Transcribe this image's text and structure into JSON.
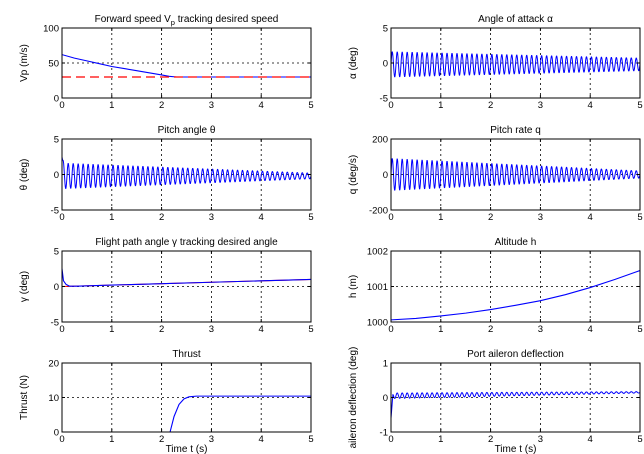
{
  "colors": {
    "blue": "#0000ff",
    "red": "#ff0000",
    "axis": "#000000",
    "grid": "#000000"
  },
  "chart_data": [
    {
      "type": "line",
      "title": "Forward speed V",
      "title_sub": "p",
      "title_rest": " tracking desired speed",
      "ylabel": "Vp (m/s)",
      "xlabel": "",
      "xlim": [
        0,
        5
      ],
      "ylim": [
        0,
        100
      ],
      "xticks": [
        "0",
        "1",
        "2",
        "3",
        "4",
        "5"
      ],
      "yticks": [
        "0",
        "50",
        "100"
      ],
      "grid": true,
      "series": [
        {
          "color": "#0000ff",
          "style": "solid",
          "x": [
            0,
            0.25,
            0.5,
            0.75,
            1.0,
            1.25,
            1.5,
            1.75,
            2.0,
            2.15,
            2.3,
            2.5,
            3.0,
            4.0,
            5.0
          ],
          "y": [
            62,
            57,
            53,
            49,
            45,
            42,
            39,
            36,
            33,
            31,
            30,
            30,
            30,
            30,
            30
          ]
        },
        {
          "color": "#ff0000",
          "style": "dashed",
          "x": [
            0,
            5
          ],
          "y": [
            30,
            30
          ]
        }
      ]
    },
    {
      "type": "line",
      "title": "Angle of attack α",
      "ylabel": "α (deg)",
      "xlabel": "",
      "xlim": [
        0,
        5
      ],
      "ylim": [
        -5,
        5
      ],
      "xticks": [
        "0",
        "1",
        "2",
        "3",
        "4",
        "5"
      ],
      "yticks": [
        "-5",
        "0",
        "5"
      ],
      "grid": true,
      "osc": {
        "color": "#0000ff",
        "offset": -0.2,
        "amp_start": 1.8,
        "amp_end": 0.9,
        "cycles": 50
      }
    },
    {
      "type": "line",
      "title": "Pitch angle θ",
      "ylabel": "θ (deg)",
      "xlabel": "",
      "xlim": [
        0,
        5
      ],
      "ylim": [
        -5,
        5
      ],
      "xticks": [
        "0",
        "1",
        "2",
        "3",
        "4",
        "5"
      ],
      "yticks": [
        "-5",
        "0",
        "5"
      ],
      "grid": true,
      "osc": {
        "color": "#0000ff",
        "offset": -0.2,
        "amp_start": 1.8,
        "amp_end": 0.4,
        "cycles": 50,
        "spike": 2.5
      }
    },
    {
      "type": "line",
      "title": "Pitch rate q",
      "ylabel": "q (deg/s)",
      "xlabel": "",
      "xlim": [
        0,
        5
      ],
      "ylim": [
        -200,
        200
      ],
      "xticks": [
        "0",
        "1",
        "2",
        "3",
        "4",
        "5"
      ],
      "yticks": [
        "-200",
        "0",
        "200"
      ],
      "grid": true,
      "osc": {
        "color": "#0000ff",
        "offset": 0,
        "amp_start": 90,
        "amp_end": 20,
        "cycles": 50
      }
    },
    {
      "type": "line",
      "title": "Flight path angle γ tracking desired angle",
      "ylabel": "γ (deg)",
      "xlabel": "",
      "xlim": [
        0,
        5
      ],
      "ylim": [
        -5,
        5
      ],
      "xticks": [
        "0",
        "1",
        "2",
        "3",
        "4",
        "5"
      ],
      "yticks": [
        "-5",
        "0",
        "5"
      ],
      "grid": true,
      "series": [
        {
          "color": "#ff0000",
          "style": "solid",
          "x": [
            0,
            5
          ],
          "y": [
            0,
            1.0
          ]
        },
        {
          "color": "#0000ff",
          "style": "solid",
          "x": [
            0,
            0.03,
            0.08,
            0.15,
            0.3,
            1,
            2,
            3,
            4,
            5
          ],
          "y": [
            2.5,
            0.8,
            0.3,
            0.05,
            0.05,
            0.2,
            0.4,
            0.6,
            0.8,
            1.0
          ]
        }
      ]
    },
    {
      "type": "line",
      "title": "Altitude h",
      "ylabel": "h (m)",
      "xlabel": "",
      "xlim": [
        0,
        5
      ],
      "ylim": [
        1000,
        1002
      ],
      "xticks": [
        "0",
        "1",
        "2",
        "3",
        "4",
        "5"
      ],
      "yticks": [
        "1000",
        "1001",
        "1002"
      ],
      "grid": true,
      "series": [
        {
          "color": "#0000ff",
          "style": "solid",
          "x": [
            0,
            0.5,
            1,
            1.5,
            2,
            2.5,
            3,
            3.5,
            4,
            4.5,
            5
          ],
          "y": [
            1000.06,
            1000.1,
            1000.17,
            1000.25,
            1000.35,
            1000.47,
            1000.6,
            1000.77,
            1000.97,
            1001.2,
            1001.45
          ]
        }
      ]
    },
    {
      "type": "line",
      "title": "Thrust",
      "ylabel": "Thrust (N)",
      "xlabel": "Time t (s)",
      "xlim": [
        0,
        5
      ],
      "ylim": [
        0,
        20
      ],
      "xticks": [
        "0",
        "1",
        "2",
        "3",
        "4",
        "5"
      ],
      "yticks": [
        "0",
        "10",
        "20"
      ],
      "grid": true,
      "series": [
        {
          "color": "#0000ff",
          "style": "solid",
          "x": [
            2.17,
            2.25,
            2.35,
            2.45,
            2.55,
            2.7,
            2.9,
            3.2,
            4.0,
            5.0
          ],
          "y": [
            0,
            4.5,
            8.0,
            9.6,
            10.2,
            10.4,
            10.4,
            10.4,
            10.4,
            10.4
          ]
        }
      ]
    },
    {
      "type": "line",
      "title": "Port aileron deflection",
      "ylabel": "aileron deflection (deg)",
      "xlabel": "Time t (s)",
      "xlim": [
        0,
        5
      ],
      "ylim": [
        -1,
        1
      ],
      "xticks": [
        "0",
        "1",
        "2",
        "3",
        "4",
        "5"
      ],
      "yticks": [
        "-1",
        "0",
        "1"
      ],
      "grid": true,
      "osc": {
        "color": "#0000ff",
        "offset": 0.05,
        "offset_end": 0.15,
        "amp_start": 0.08,
        "amp_end": 0.02,
        "cycles": 50,
        "spike": -0.6
      }
    }
  ]
}
